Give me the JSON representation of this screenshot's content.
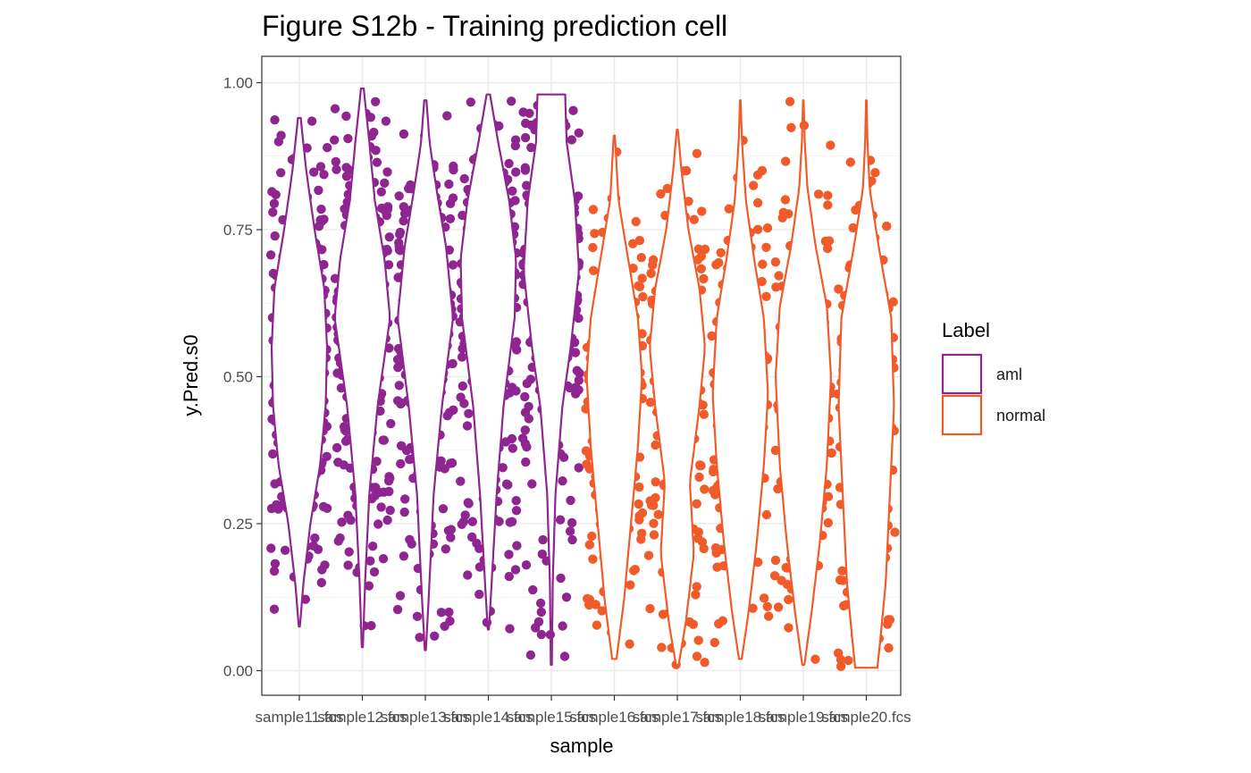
{
  "chart_data": {
    "type": "violin",
    "title": "Figure S12b - Training prediction cell",
    "xlabel": "sample",
    "ylabel": "y.Pred.s0",
    "ylim": [
      0,
      1
    ],
    "y_ticks": [
      "0.00",
      "0.25",
      "0.50",
      "0.75",
      "1.00"
    ],
    "y_tick_values": [
      0,
      0.25,
      0.5,
      0.75,
      1.0
    ],
    "grid": true,
    "legend": {
      "title": "Label",
      "position": "right",
      "entries": [
        {
          "label": "aml",
          "color": "#8E2590"
        },
        {
          "label": "normal",
          "color": "#F15A29"
        }
      ]
    },
    "categories": [
      "sample11.fcs",
      "sample12.fcs",
      "sample13.fcs",
      "sample14.fcs",
      "sample15.fcs",
      "sample16.fcs",
      "sample17.fcs",
      "sample18.fcs",
      "sample19.fcs",
      "sample20.fcs"
    ],
    "x_tick_text": [
      "sample11.fcs",
      "sample12.fcs",
      "sample13.fcs",
      "sample14.fcs",
      "sample15.fcs",
      "sample16.fcs",
      "sample17.fcs",
      "sample18.fcs",
      "sample19.fcs",
      "sample20.fcs"
    ],
    "series": [
      {
        "name": "aml",
        "color": "#8E2590",
        "samples": [
          {
            "category": "sample11.fcs",
            "min": 0.075,
            "max": 0.94,
            "shape": [
              [
                0.075,
                0.02
              ],
              [
                0.15,
                0.15
              ],
              [
                0.25,
                0.4
              ],
              [
                0.35,
                0.75
              ],
              [
                0.45,
                0.95
              ],
              [
                0.55,
                1.0
              ],
              [
                0.65,
                0.9
              ],
              [
                0.75,
                0.55
              ],
              [
                0.85,
                0.25
              ],
              [
                0.94,
                0.05
              ]
            ]
          },
          {
            "category": "sample12.fcs",
            "min": 0.04,
            "max": 0.99,
            "shape": [
              [
                0.04,
                0.02
              ],
              [
                0.15,
                0.1
              ],
              [
                0.3,
                0.25
              ],
              [
                0.45,
                0.55
              ],
              [
                0.6,
                1.0
              ],
              [
                0.7,
                0.8
              ],
              [
                0.8,
                0.45
              ],
              [
                0.9,
                0.25
              ],
              [
                0.99,
                0.05
              ]
            ]
          },
          {
            "category": "sample13.fcs",
            "min": 0.035,
            "max": 0.97,
            "shape": [
              [
                0.035,
                0.02
              ],
              [
                0.15,
                0.15
              ],
              [
                0.3,
                0.3
              ],
              [
                0.45,
                0.6
              ],
              [
                0.6,
                1.0
              ],
              [
                0.72,
                0.75
              ],
              [
                0.82,
                0.4
              ],
              [
                0.9,
                0.15
              ],
              [
                0.97,
                0.04
              ]
            ]
          },
          {
            "category": "sample14.fcs",
            "min": 0.07,
            "max": 0.98,
            "shape": [
              [
                0.07,
                0.02
              ],
              [
                0.15,
                0.12
              ],
              [
                0.3,
                0.3
              ],
              [
                0.45,
                0.55
              ],
              [
                0.6,
                0.95
              ],
              [
                0.7,
                1.0
              ],
              [
                0.8,
                0.75
              ],
              [
                0.9,
                0.35
              ],
              [
                0.98,
                0.06
              ]
            ]
          },
          {
            "category": "sample15.fcs",
            "min": 0.01,
            "max": 0.98,
            "shape": [
              [
                0.01,
                0.02
              ],
              [
                0.15,
                0.05
              ],
              [
                0.3,
                0.15
              ],
              [
                0.45,
                0.4
              ],
              [
                0.55,
                0.7
              ],
              [
                0.68,
                1.0
              ],
              [
                0.8,
                0.85
              ],
              [
                0.9,
                0.55
              ],
              [
                0.98,
                0.5
              ]
            ]
          }
        ]
      },
      {
        "name": "normal",
        "color": "#F15A29",
        "samples": [
          {
            "category": "sample16.fcs",
            "min": 0.02,
            "max": 0.91,
            "shape": [
              [
                0.02,
                0.08
              ],
              [
                0.12,
                0.35
              ],
              [
                0.25,
                0.6
              ],
              [
                0.38,
                0.85
              ],
              [
                0.5,
                1.0
              ],
              [
                0.6,
                0.85
              ],
              [
                0.7,
                0.5
              ],
              [
                0.8,
                0.15
              ],
              [
                0.91,
                0.02
              ]
            ]
          },
          {
            "category": "sample17.fcs",
            "min": 0.01,
            "max": 0.92,
            "shape": [
              [
                0.01,
                0.05
              ],
              [
                0.08,
                0.3
              ],
              [
                0.2,
                0.6
              ],
              [
                0.32,
                0.45
              ],
              [
                0.45,
                0.8
              ],
              [
                0.55,
                1.0
              ],
              [
                0.65,
                0.8
              ],
              [
                0.75,
                0.4
              ],
              [
                0.85,
                0.15
              ],
              [
                0.92,
                0.02
              ]
            ]
          },
          {
            "category": "sample18.fcs",
            "min": 0.02,
            "max": 0.97,
            "shape": [
              [
                0.02,
                0.05
              ],
              [
                0.1,
                0.3
              ],
              [
                0.22,
                0.6
              ],
              [
                0.35,
                0.85
              ],
              [
                0.47,
                1.0
              ],
              [
                0.6,
                0.85
              ],
              [
                0.7,
                0.5
              ],
              [
                0.8,
                0.2
              ],
              [
                0.9,
                0.06
              ],
              [
                0.97,
                0.01
              ]
            ]
          },
          {
            "category": "sample19.fcs",
            "min": 0.01,
            "max": 0.97,
            "shape": [
              [
                0.01,
                0.04
              ],
              [
                0.1,
                0.3
              ],
              [
                0.22,
                0.6
              ],
              [
                0.35,
                0.85
              ],
              [
                0.5,
                1.0
              ],
              [
                0.62,
                0.85
              ],
              [
                0.72,
                0.45
              ],
              [
                0.82,
                0.15
              ],
              [
                0.9,
                0.05
              ],
              [
                0.97,
                0.01
              ]
            ]
          },
          {
            "category": "sample20.fcs",
            "min": 0.005,
            "max": 0.97,
            "shape": [
              [
                0.005,
                0.4
              ],
              [
                0.05,
                0.5
              ],
              [
                0.15,
                0.7
              ],
              [
                0.3,
                0.85
              ],
              [
                0.45,
                1.0
              ],
              [
                0.6,
                0.9
              ],
              [
                0.72,
                0.45
              ],
              [
                0.82,
                0.12
              ],
              [
                0.9,
                0.04
              ],
              [
                0.97,
                0.01
              ]
            ]
          }
        ]
      }
    ]
  }
}
